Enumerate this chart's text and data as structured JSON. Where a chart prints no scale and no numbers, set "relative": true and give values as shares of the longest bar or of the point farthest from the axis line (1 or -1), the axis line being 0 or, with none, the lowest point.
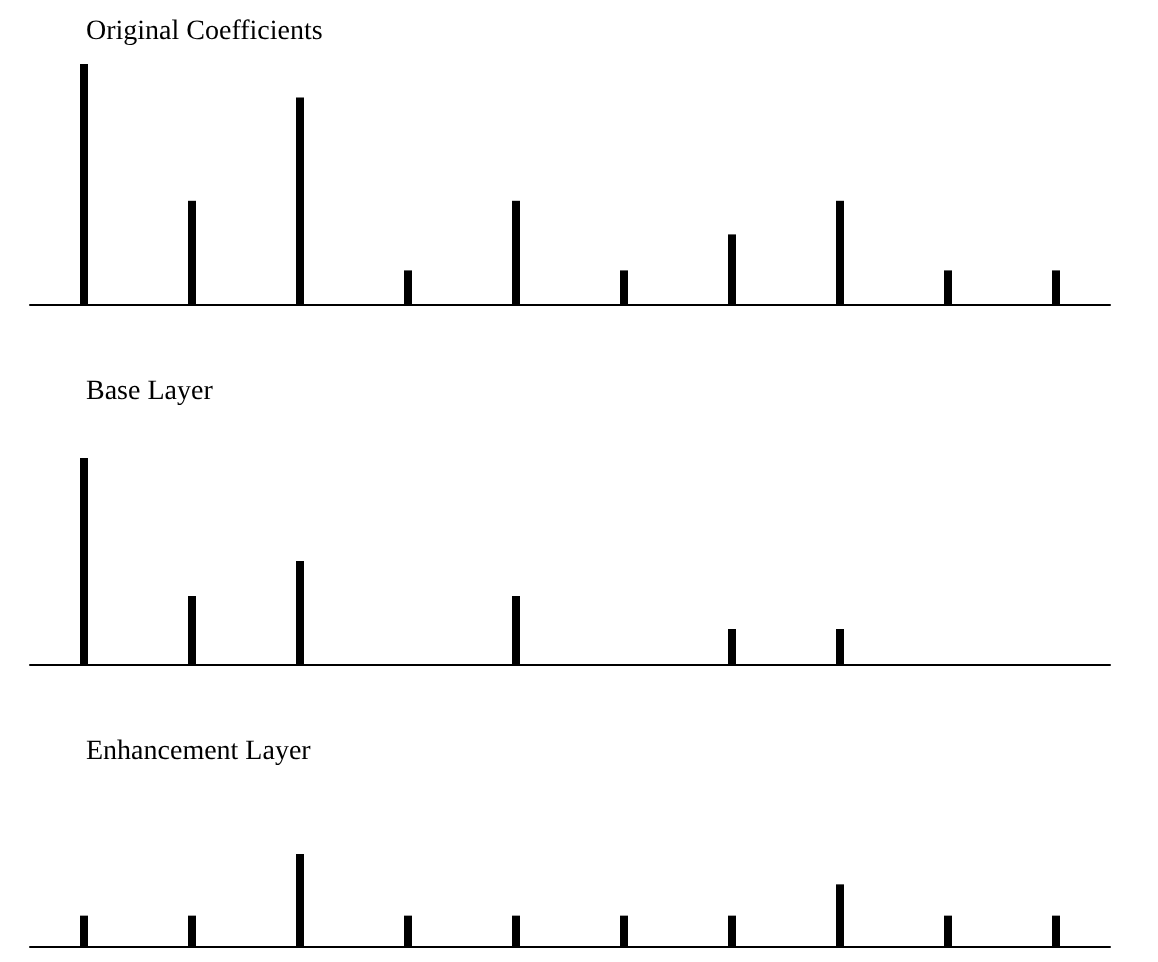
{
  "chart_data": [
    {
      "type": "bar",
      "title": "Original Coefficients",
      "relative": true,
      "categories": [
        null,
        null,
        null,
        null,
        null,
        null,
        null,
        null,
        null,
        null
      ],
      "series": [
        {
          "color": "#000000",
          "values": [
            1,
            0.43,
            0.86,
            0.14,
            0.43,
            0.14,
            0.29,
            0.43,
            0.14,
            0.14
          ]
        }
      ]
    },
    {
      "type": "bar",
      "title": "Base Layer",
      "relative": true,
      "categories": [
        null,
        null,
        null,
        null,
        null,
        null,
        null,
        null,
        null,
        null
      ],
      "series": [
        {
          "color": "#000000",
          "values": [
            1,
            0.33,
            0.5,
            0,
            0.33,
            0,
            0.17,
            0.17,
            0,
            0
          ]
        }
      ]
    },
    {
      "type": "bar",
      "title": "Enhancement Layer",
      "relative": true,
      "categories": [
        null,
        null,
        null,
        null,
        null,
        null,
        null,
        null,
        null,
        null
      ],
      "series": [
        {
          "color": "#000000",
          "values": [
            0.33,
            0.33,
            1,
            0.33,
            0.33,
            0.33,
            0.33,
            0.67,
            0.33,
            0.33
          ]
        }
      ]
    }
  ]
}
